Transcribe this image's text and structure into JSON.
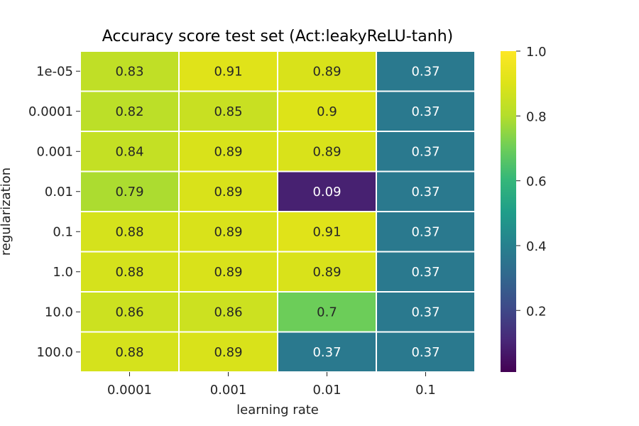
{
  "chart_data": {
    "type": "heatmap",
    "title": "Accuracy score test set (Act:leakyReLU-tanh)",
    "xlabel": "learning rate",
    "ylabel": "regularization",
    "x_categories": [
      "0.0001",
      "0.001",
      "0.01",
      "0.1"
    ],
    "y_categories": [
      "1e-05",
      "0.0001",
      "0.001",
      "0.01",
      "0.1",
      "1.0",
      "10.0",
      "100.0"
    ],
    "values": [
      [
        0.83,
        0.91,
        0.89,
        0.37
      ],
      [
        0.82,
        0.85,
        0.9,
        0.37
      ],
      [
        0.84,
        0.89,
        0.89,
        0.37
      ],
      [
        0.79,
        0.89,
        0.09,
        0.37
      ],
      [
        0.88,
        0.89,
        0.91,
        0.37
      ],
      [
        0.88,
        0.89,
        0.89,
        0.37
      ],
      [
        0.86,
        0.86,
        0.7,
        0.37
      ],
      [
        0.88,
        0.89,
        0.37,
        0.37
      ]
    ],
    "colormap": "viridis",
    "colorbar_range": [
      0.01,
      1.0
    ],
    "colorbar_ticks": [
      "0.2",
      "0.4",
      "0.6",
      "0.8",
      "1.0"
    ],
    "annotation_dark_color": "#262626",
    "annotation_light_color": "#ffffff"
  }
}
